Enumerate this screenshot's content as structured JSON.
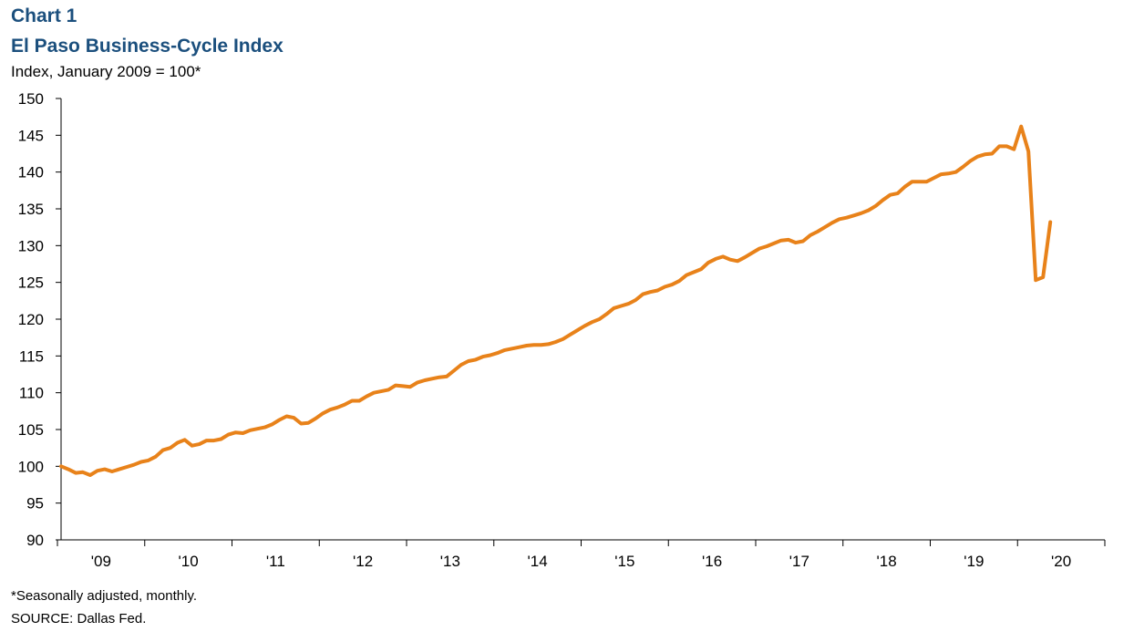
{
  "header": {
    "chart_number": "Chart 1",
    "title": "El Paso Business-Cycle Index",
    "ylabel": "Index, January 2009 = 100*"
  },
  "footer": {
    "note": "*Seasonally adjusted, monthly.",
    "source": "SOURCE:  Dallas Fed."
  },
  "colors": {
    "line": "#e8821a",
    "title": "#1b4f7d"
  },
  "chart_data": {
    "type": "line",
    "title": "El Paso Business-Cycle Index",
    "ylabel": "Index, January 2009 = 100*",
    "xlabel": "",
    "ylim": [
      90,
      150
    ],
    "yticks": [
      90,
      95,
      100,
      105,
      110,
      115,
      120,
      125,
      130,
      135,
      140,
      145,
      150
    ],
    "xticks": [
      "'09",
      "'10",
      "'11",
      "'12",
      "'13",
      "'14",
      "'15",
      "'16",
      "'17",
      "'18",
      "'19",
      "'20"
    ],
    "grid": false,
    "frequency": "monthly",
    "start": "2009-01",
    "end": "2020-06",
    "series": [
      {
        "values": [
          100.0,
          99.6,
          99.1,
          99.2,
          98.8,
          99.4,
          99.6,
          99.3,
          99.6,
          99.9,
          100.2,
          100.6,
          100.8,
          101.3,
          102.2,
          102.5,
          103.2,
          103.6,
          102.8,
          103.0,
          103.5,
          103.5,
          103.7,
          104.3,
          104.6,
          104.5,
          104.9,
          105.1,
          105.3,
          105.7,
          106.3,
          106.8,
          106.6,
          105.8,
          105.9,
          106.5,
          107.2,
          107.7,
          108.0,
          108.4,
          108.9,
          108.9,
          109.5,
          110.0,
          110.2,
          110.4,
          111.0,
          110.9,
          110.8,
          111.4,
          111.7,
          111.9,
          112.1,
          112.2,
          113.0,
          113.8,
          114.3,
          114.5,
          114.9,
          115.1,
          115.4,
          115.8,
          116.0,
          116.2,
          116.4,
          116.5,
          116.5,
          116.6,
          116.9,
          117.3,
          117.9,
          118.5,
          119.1,
          119.6,
          120.0,
          120.7,
          121.5,
          121.8,
          122.1,
          122.6,
          123.4,
          123.7,
          123.9,
          124.4,
          124.7,
          125.2,
          126.0,
          126.4,
          126.8,
          127.7,
          128.2,
          128.5,
          128.1,
          127.9,
          128.4,
          129.0,
          129.6,
          129.9,
          130.3,
          130.7,
          130.8,
          130.4,
          130.6,
          131.4,
          131.9,
          132.5,
          133.1,
          133.6,
          133.8,
          134.1,
          134.4,
          134.8,
          135.4,
          136.2,
          136.9,
          137.1,
          138.0,
          138.7,
          138.7,
          138.7,
          139.2,
          139.7,
          139.8,
          140.0,
          140.7,
          141.5,
          142.1,
          142.4,
          142.5,
          143.5,
          143.5,
          143.1,
          146.2,
          142.8,
          125.3,
          125.7,
          133.2
        ]
      }
    ]
  }
}
